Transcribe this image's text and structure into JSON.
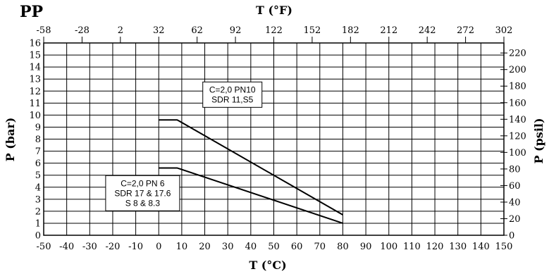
{
  "chart_data": {
    "type": "line",
    "title": "PP",
    "xlabel": "T (°C)",
    "ylabel": "P (bar)",
    "x2label": "T (°F)",
    "y2label": "P (psil)",
    "xlim": [
      -50,
      150
    ],
    "ylim": [
      0,
      16
    ],
    "x_ticks": [
      "-50",
      "-40",
      "-30",
      "-20",
      "-10",
      "0",
      "10",
      "20",
      "30",
      "40",
      "50",
      "60",
      "70",
      "80",
      "90",
      "100",
      "110",
      "120",
      "130",
      "140",
      "150"
    ],
    "y_ticks": [
      "0",
      "1",
      "2",
      "3",
      "4",
      "5",
      "6",
      "7",
      "8",
      "9",
      "10",
      "11",
      "12",
      "13",
      "14",
      "15",
      "16"
    ],
    "x2_ticks": [
      "-58",
      "-28",
      "2",
      "32",
      "62",
      "92",
      "122",
      "152",
      "182",
      "212",
      "242",
      "272",
      "302"
    ],
    "y2_ticks": [
      "0",
      "20",
      "40",
      "60",
      "80",
      "100",
      "120",
      "140",
      "160",
      "180",
      "200",
      "220"
    ],
    "grid": true,
    "line_color": "#000000",
    "series": [
      {
        "x": [
          0,
          8,
          80
        ],
        "y": [
          9.6,
          9.6,
          1.7
        ]
      },
      {
        "x": [
          0,
          8,
          80
        ],
        "y": [
          5.6,
          5.6,
          1.0
        ]
      }
    ],
    "annotations": [
      {
        "lines": [
          "C=2,0 PN10",
          "SDR 11,S5"
        ],
        "x": 32,
        "y": 11.7
      },
      {
        "lines": [
          "C=2,0 PN 6",
          "SDR 17 & 17.6",
          "S 8 & 8.3"
        ],
        "x": -7,
        "y": 3.5
      }
    ]
  }
}
